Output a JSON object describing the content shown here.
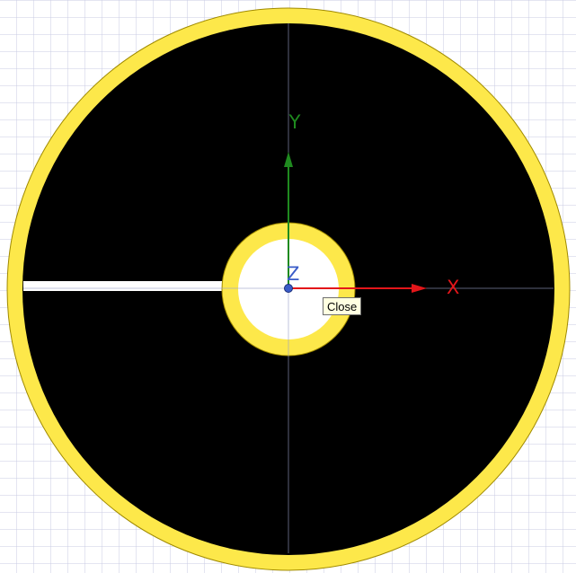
{
  "viewport": {
    "background_color": "#ffffff",
    "grid_color": "#c9cbe3"
  },
  "part": {
    "ring_color": "#fde84a",
    "face_color": "#000000",
    "slot_color": "#ffffff"
  },
  "axes": {
    "x_label": "X",
    "y_label": "Y",
    "z_label": "Z",
    "x_color": "#e3161a",
    "y_color": "#1f8a1f",
    "z_color": "#3a5cc8"
  },
  "tooltip": {
    "text": "Close"
  }
}
